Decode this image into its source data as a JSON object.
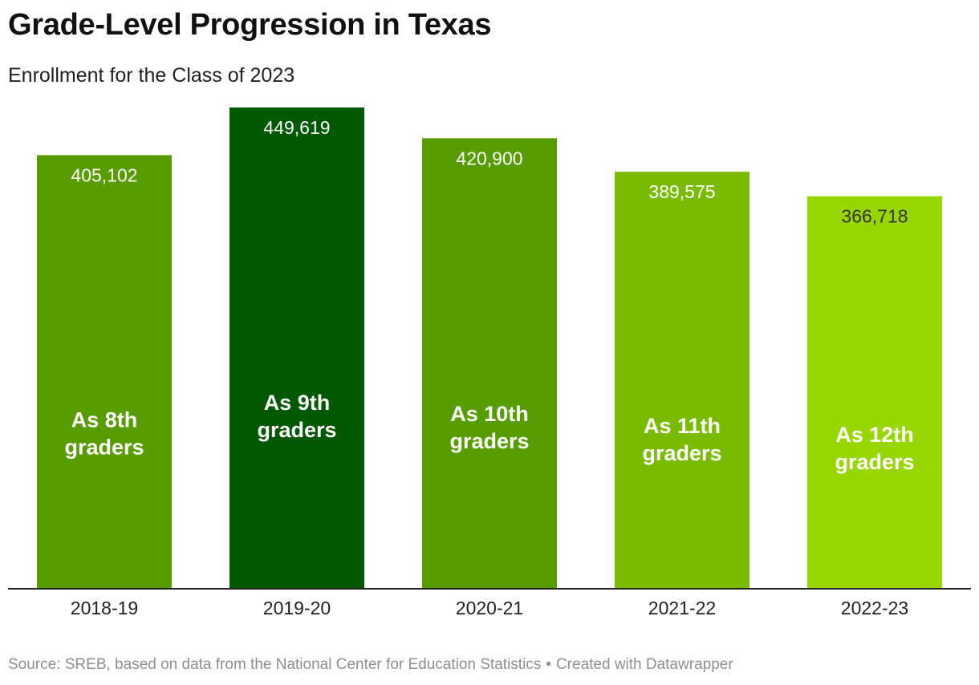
{
  "title": "Grade-Level Progression in Texas",
  "subtitle": "Enrollment for the Class of 2023",
  "footer": {
    "source": "Source: SREB, based on data from the National Center for Education Statistics",
    "separator": "•",
    "credit": "Created with Datawrapper"
  },
  "chart_data": {
    "type": "bar",
    "categories": [
      "2018-19",
      "2019-20",
      "2020-21",
      "2021-22",
      "2022-23"
    ],
    "values": [
      405102,
      449619,
      420900,
      389575,
      366718
    ],
    "value_labels": [
      "405,102",
      "449,619",
      "420,900",
      "389,575",
      "366,718"
    ],
    "bar_labels": [
      [
        "As 8th",
        "graders"
      ],
      [
        "As 9th",
        "graders"
      ],
      [
        "As 10th",
        "graders"
      ],
      [
        "As 11th",
        "graders"
      ],
      [
        "As 12th",
        "graders"
      ]
    ],
    "colors": [
      "#579d00",
      "#005800",
      "#579d00",
      "#78bb00",
      "#98d600"
    ],
    "value_label_colors": [
      "#ffffff",
      "#ffffff",
      "#ffffff",
      "#ffffff",
      "#333333"
    ],
    "title": "Grade-Level Progression in Texas",
    "xlabel": "",
    "ylabel": "",
    "ylim": [
      0,
      449619
    ],
    "grid": false,
    "legend": "none"
  }
}
